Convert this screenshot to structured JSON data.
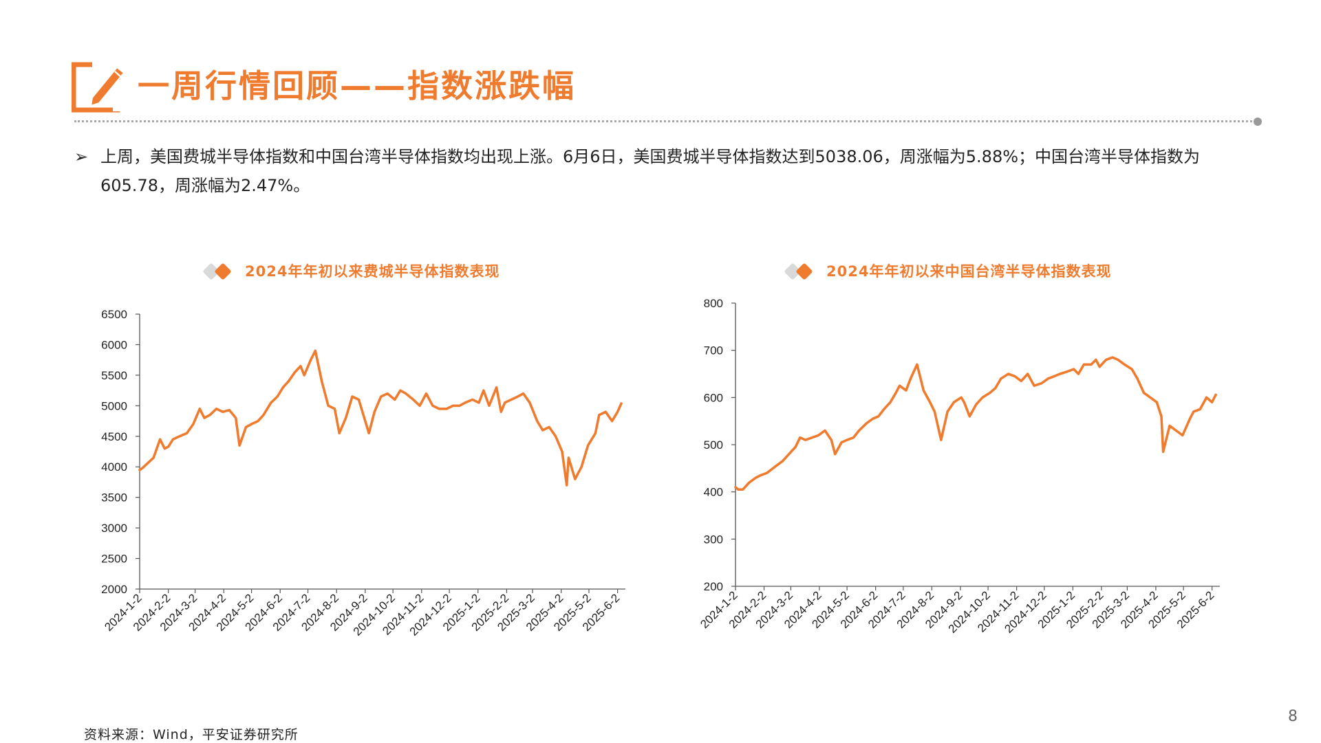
{
  "header": {
    "title": "一周行情回顾——指数涨跌幅",
    "icon": "edit-pencil-icon",
    "accent_color": "#ef7b2f"
  },
  "summary": {
    "bullet": "➢",
    "text": "上周，美国费城半导体指数和中国台湾半导体指数均出现上涨。6月6日，美国费城半导体指数达到5038.06，周涨幅为5.88%；中国台湾半导体指数为605.78，周涨幅为2.47%。"
  },
  "footer": {
    "source": "资料来源：Wind，平安证券研究所",
    "page_number": "8"
  },
  "chart_data": [
    {
      "type": "line",
      "title": "2024年年初以来费城半导体指数表现",
      "ylim": [
        2000,
        6500
      ],
      "yticks": [
        "2000",
        "2500",
        "3000",
        "3500",
        "4000",
        "4500",
        "5000",
        "5500",
        "6000",
        "6500"
      ],
      "xticks": [
        "2024-1-2",
        "2024-2-2",
        "2024-3-2",
        "2024-4-2",
        "2024-5-2",
        "2024-6-2",
        "2024-7-2",
        "2024-8-2",
        "2024-9-2",
        "2024-10-2",
        "2024-11-2",
        "2024-12-2",
        "2025-1-2",
        "2025-2-2",
        "2025-3-2",
        "2025-4-2",
        "2025-5-2",
        "2025-6-2"
      ],
      "xrange": [
        "2024-01-02",
        "2025-06-06"
      ],
      "series_color": "#ef7b2f",
      "x": [
        "2024-01-02",
        "2024-01-05",
        "2024-01-10",
        "2024-01-17",
        "2024-01-24",
        "2024-01-29",
        "2024-02-02",
        "2024-02-07",
        "2024-02-14",
        "2024-02-22",
        "2024-02-29",
        "2024-03-07",
        "2024-03-12",
        "2024-03-18",
        "2024-03-25",
        "2024-04-01",
        "2024-04-08",
        "2024-04-15",
        "2024-04-19",
        "2024-04-26",
        "2024-05-02",
        "2024-05-09",
        "2024-05-15",
        "2024-05-23",
        "2024-05-30",
        "2024-06-05",
        "2024-06-11",
        "2024-06-18",
        "2024-06-24",
        "2024-06-28",
        "2024-07-05",
        "2024-07-10",
        "2024-07-17",
        "2024-07-24",
        "2024-07-31",
        "2024-08-05",
        "2024-08-12",
        "2024-08-19",
        "2024-08-26",
        "2024-09-03",
        "2024-09-06",
        "2024-09-12",
        "2024-09-19",
        "2024-09-26",
        "2024-10-04",
        "2024-10-10",
        "2024-10-16",
        "2024-10-24",
        "2024-10-31",
        "2024-11-07",
        "2024-11-14",
        "2024-11-21",
        "2024-11-29",
        "2024-12-06",
        "2024-12-13",
        "2024-12-19",
        "2024-12-27",
        "2025-01-03",
        "2025-01-08",
        "2025-01-14",
        "2025-01-22",
        "2025-01-27",
        "2025-01-31",
        "2025-02-07",
        "2025-02-14",
        "2025-02-20",
        "2025-02-27",
        "2025-03-07",
        "2025-03-13",
        "2025-03-20",
        "2025-03-27",
        "2025-04-03",
        "2025-04-08",
        "2025-04-10",
        "2025-04-17",
        "2025-04-24",
        "2025-05-01",
        "2025-05-09",
        "2025-05-13",
        "2025-05-20",
        "2025-05-27",
        "2025-06-02",
        "2025-06-06"
      ],
      "values": [
        3950,
        3980,
        4050,
        4150,
        4450,
        4300,
        4330,
        4450,
        4500,
        4550,
        4700,
        4950,
        4800,
        4850,
        4950,
        4900,
        4930,
        4800,
        4350,
        4650,
        4700,
        4750,
        4850,
        5050,
        5150,
        5300,
        5400,
        5550,
        5650,
        5500,
        5750,
        5900,
        5400,
        5000,
        4950,
        4550,
        4800,
        5150,
        5100,
        4700,
        4550,
        4900,
        5150,
        5200,
        5100,
        5250,
        5200,
        5100,
        5000,
        5200,
        5000,
        4950,
        4950,
        5000,
        5000,
        5050,
        5100,
        5050,
        5250,
        5000,
        5300,
        4900,
        5050,
        5100,
        5150,
        5200,
        5050,
        4750,
        4600,
        4650,
        4500,
        4250,
        3700,
        4150,
        3800,
        4000,
        4350,
        4550,
        4850,
        4900,
        4750,
        4900,
        5038.06
      ]
    },
    {
      "type": "line",
      "title": "2024年年初以来中国台湾半导体指数表现",
      "ylim": [
        200,
        800
      ],
      "yticks": [
        "200",
        "300",
        "400",
        "500",
        "600",
        "700",
        "800"
      ],
      "xticks": [
        "2024-1-2",
        "2024-2-2",
        "2024-3-2",
        "2024-4-2",
        "2024-5-2",
        "2024-6-2",
        "2024-7-2",
        "2024-8-2",
        "2024-9-2",
        "2024-10-2",
        "2024-11-2",
        "2024-12-2",
        "2025-1-2",
        "2025-2-2",
        "2025-3-2",
        "2025-4-2",
        "2025-5-2",
        "2025-6-2"
      ],
      "xrange": [
        "2024-01-02",
        "2025-06-06"
      ],
      "series_color": "#ef7b2f",
      "x": [
        "2024-01-02",
        "2024-01-05",
        "2024-01-10",
        "2024-01-17",
        "2024-01-24",
        "2024-01-29",
        "2024-02-05",
        "2024-02-15",
        "2024-02-22",
        "2024-02-29",
        "2024-03-07",
        "2024-03-12",
        "2024-03-18",
        "2024-03-25",
        "2024-04-01",
        "2024-04-08",
        "2024-04-15",
        "2024-04-19",
        "2024-04-26",
        "2024-05-02",
        "2024-05-09",
        "2024-05-15",
        "2024-05-23",
        "2024-05-30",
        "2024-06-05",
        "2024-06-11",
        "2024-06-18",
        "2024-06-24",
        "2024-06-28",
        "2024-07-05",
        "2024-07-10",
        "2024-07-17",
        "2024-07-24",
        "2024-07-31",
        "2024-08-05",
        "2024-08-12",
        "2024-08-19",
        "2024-08-26",
        "2024-09-03",
        "2024-09-06",
        "2024-09-12",
        "2024-09-19",
        "2024-09-26",
        "2024-10-04",
        "2024-10-10",
        "2024-10-16",
        "2024-10-24",
        "2024-10-31",
        "2024-11-07",
        "2024-11-14",
        "2024-11-21",
        "2024-11-29",
        "2024-12-06",
        "2024-12-13",
        "2024-12-19",
        "2024-12-27",
        "2025-01-03",
        "2025-01-08",
        "2025-01-14",
        "2025-01-22",
        "2025-01-27",
        "2025-01-31",
        "2025-02-07",
        "2025-02-14",
        "2025-02-20",
        "2025-02-27",
        "2025-03-07",
        "2025-03-13",
        "2025-03-20",
        "2025-03-27",
        "2025-04-03",
        "2025-04-08",
        "2025-04-10",
        "2025-04-17",
        "2025-04-24",
        "2025-05-01",
        "2025-05-09",
        "2025-05-13",
        "2025-05-20",
        "2025-05-27",
        "2025-06-02",
        "2025-06-06"
      ],
      "values": [
        410,
        405,
        405,
        420,
        430,
        435,
        440,
        455,
        465,
        480,
        495,
        515,
        510,
        515,
        520,
        530,
        510,
        480,
        505,
        510,
        515,
        530,
        545,
        555,
        560,
        575,
        590,
        610,
        625,
        615,
        640,
        670,
        615,
        590,
        570,
        510,
        570,
        590,
        600,
        590,
        560,
        585,
        600,
        610,
        620,
        640,
        650,
        645,
        635,
        650,
        625,
        630,
        640,
        645,
        650,
        655,
        660,
        650,
        670,
        670,
        680,
        665,
        680,
        685,
        680,
        670,
        660,
        640,
        610,
        600,
        590,
        560,
        485,
        540,
        530,
        520,
        555,
        570,
        575,
        600,
        590,
        605.78
      ]
    }
  ]
}
